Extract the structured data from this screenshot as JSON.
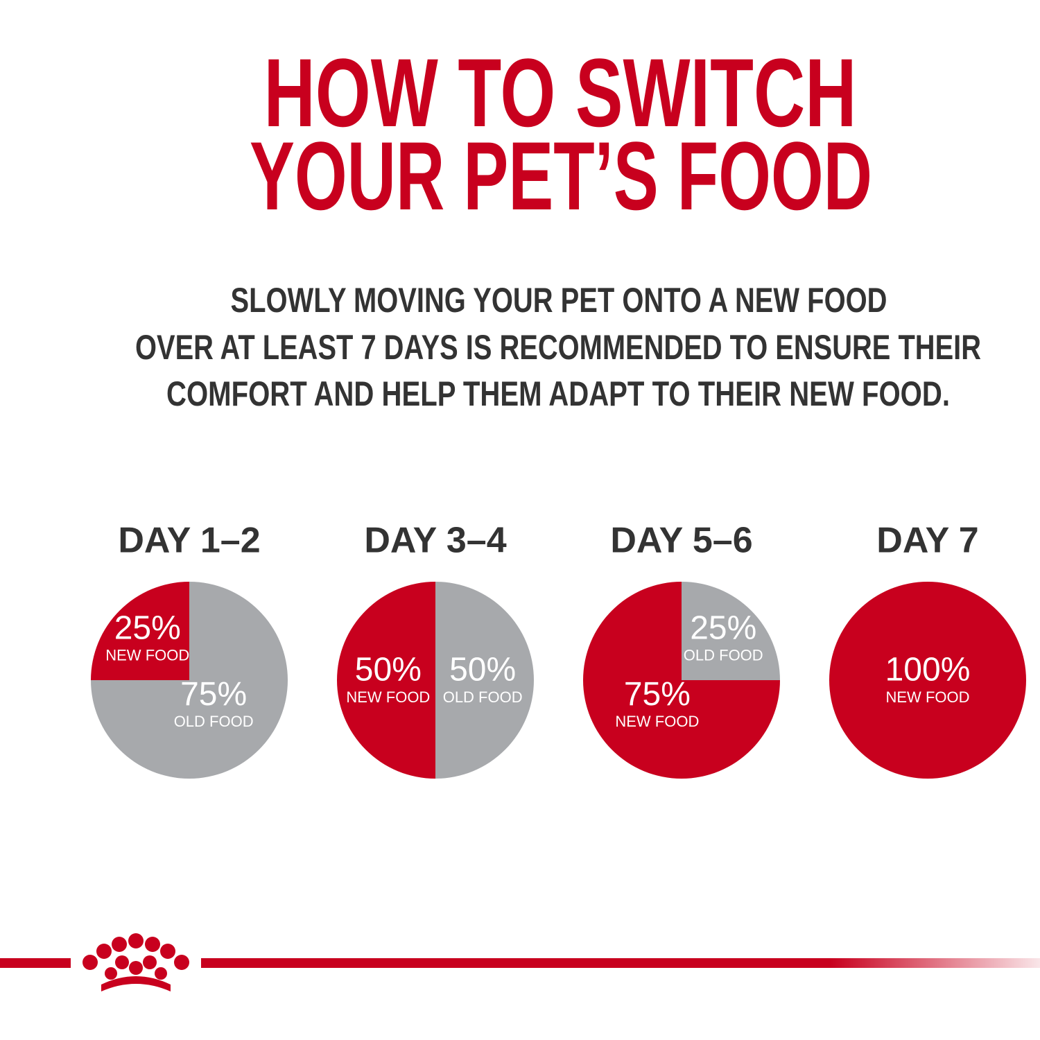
{
  "header": {
    "title": [
      "HOW TO SWITCH",
      "YOUR PET’S FOOD"
    ],
    "subtitle": [
      "SLOWLY MOVING YOUR PET ONTO A NEW FOOD",
      "OVER AT LEAST 7 DAYS IS RECOMMENDED TO ENSURE THEIR",
      "COMFORT AND HELP THEM ADAPT TO THEIR NEW FOOD."
    ]
  },
  "chart_data": [
    {
      "type": "pie",
      "title": "DAY 1–2",
      "categories": [
        "NEW FOOD",
        "OLD FOOD"
      ],
      "values": [
        25,
        75
      ],
      "value_labels": [
        "25%",
        "75%"
      ],
      "colors": [
        "#c8001e",
        "#a7a9ac"
      ]
    },
    {
      "type": "pie",
      "title": "DAY 3–4",
      "categories": [
        "NEW FOOD",
        "OLD FOOD"
      ],
      "values": [
        50,
        50
      ],
      "value_labels": [
        "50%",
        "50%"
      ],
      "colors": [
        "#c8001e",
        "#a7a9ac"
      ]
    },
    {
      "type": "pie",
      "title": "DAY 5–6",
      "categories": [
        "NEW FOOD",
        "OLD FOOD"
      ],
      "values": [
        75,
        25
      ],
      "value_labels": [
        "75%",
        "25%"
      ],
      "colors": [
        "#c8001e",
        "#a7a9ac"
      ]
    },
    {
      "type": "pie",
      "title": "DAY 7",
      "categories": [
        "NEW FOOD"
      ],
      "values": [
        100
      ],
      "value_labels": [
        "100%"
      ],
      "colors": [
        "#c8001e"
      ]
    }
  ]
}
